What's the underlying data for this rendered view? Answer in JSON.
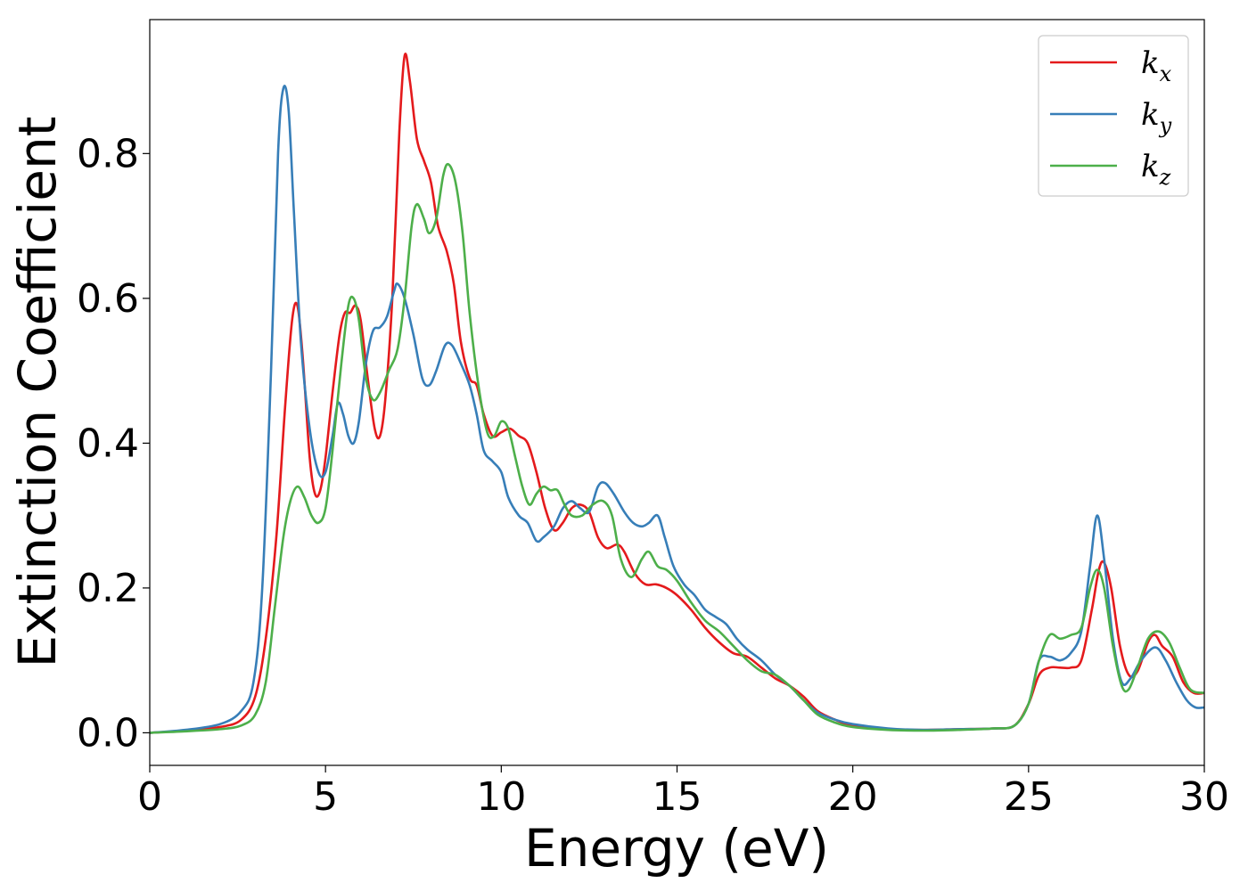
{
  "chart_data": {
    "type": "line",
    "xlabel": "Energy (eV)",
    "ylabel": "Extinction Coefficient",
    "xlim": [
      0,
      30
    ],
    "ylim": [
      -0.045,
      0.985
    ],
    "xticks": [
      0,
      5,
      10,
      15,
      20,
      25,
      30
    ],
    "yticks": [
      0.0,
      0.2,
      0.4,
      0.6,
      0.8
    ],
    "xtick_labels": [
      "0",
      "5",
      "10",
      "15",
      "20",
      "25",
      "30"
    ],
    "ytick_labels": [
      "0.0",
      "0.2",
      "0.4",
      "0.6",
      "0.8"
    ],
    "grid": false,
    "legend_position": "top-right",
    "series": [
      {
        "name": "k_x",
        "label_main": "k",
        "label_sub": "x",
        "color": "#e41a1c",
        "points": [
          [
            0,
            0.0
          ],
          [
            1,
            0.003
          ],
          [
            2,
            0.008
          ],
          [
            2.6,
            0.018
          ],
          [
            3.0,
            0.05
          ],
          [
            3.3,
            0.13
          ],
          [
            3.6,
            0.27
          ],
          [
            3.85,
            0.45
          ],
          [
            4.05,
            0.57
          ],
          [
            4.2,
            0.59
          ],
          [
            4.35,
            0.52
          ],
          [
            4.55,
            0.38
          ],
          [
            4.7,
            0.33
          ],
          [
            4.85,
            0.335
          ],
          [
            5.0,
            0.38
          ],
          [
            5.2,
            0.47
          ],
          [
            5.4,
            0.55
          ],
          [
            5.55,
            0.58
          ],
          [
            5.7,
            0.58
          ],
          [
            5.85,
            0.59
          ],
          [
            6.0,
            0.57
          ],
          [
            6.2,
            0.49
          ],
          [
            6.4,
            0.42
          ],
          [
            6.55,
            0.41
          ],
          [
            6.7,
            0.46
          ],
          [
            6.9,
            0.6
          ],
          [
            7.1,
            0.83
          ],
          [
            7.25,
            0.935
          ],
          [
            7.4,
            0.9
          ],
          [
            7.6,
            0.82
          ],
          [
            7.8,
            0.79
          ],
          [
            8.0,
            0.76
          ],
          [
            8.2,
            0.7
          ],
          [
            8.45,
            0.665
          ],
          [
            8.65,
            0.62
          ],
          [
            8.85,
            0.54
          ],
          [
            9.1,
            0.49
          ],
          [
            9.3,
            0.48
          ],
          [
            9.5,
            0.44
          ],
          [
            9.75,
            0.41
          ],
          [
            10.0,
            0.415
          ],
          [
            10.25,
            0.42
          ],
          [
            10.5,
            0.41
          ],
          [
            10.75,
            0.4
          ],
          [
            11.0,
            0.36
          ],
          [
            11.25,
            0.31
          ],
          [
            11.5,
            0.28
          ],
          [
            11.75,
            0.29
          ],
          [
            12.0,
            0.31
          ],
          [
            12.25,
            0.315
          ],
          [
            12.5,
            0.305
          ],
          [
            12.75,
            0.27
          ],
          [
            13.0,
            0.255
          ],
          [
            13.3,
            0.26
          ],
          [
            13.5,
            0.25
          ],
          [
            13.8,
            0.22
          ],
          [
            14.1,
            0.205
          ],
          [
            14.4,
            0.205
          ],
          [
            14.7,
            0.2
          ],
          [
            15.0,
            0.19
          ],
          [
            15.4,
            0.17
          ],
          [
            15.8,
            0.145
          ],
          [
            16.2,
            0.125
          ],
          [
            16.6,
            0.11
          ],
          [
            17.0,
            0.105
          ],
          [
            17.4,
            0.09
          ],
          [
            17.8,
            0.075
          ],
          [
            18.2,
            0.065
          ],
          [
            18.6,
            0.05
          ],
          [
            19.0,
            0.03
          ],
          [
            19.5,
            0.018
          ],
          [
            20.0,
            0.01
          ],
          [
            21,
            0.005
          ],
          [
            22,
            0.004
          ],
          [
            23,
            0.005
          ],
          [
            24,
            0.006
          ],
          [
            24.6,
            0.01
          ],
          [
            25.0,
            0.04
          ],
          [
            25.3,
            0.08
          ],
          [
            25.6,
            0.09
          ],
          [
            25.9,
            0.09
          ],
          [
            26.2,
            0.09
          ],
          [
            26.5,
            0.1
          ],
          [
            26.8,
            0.17
          ],
          [
            27.0,
            0.225
          ],
          [
            27.15,
            0.235
          ],
          [
            27.35,
            0.2
          ],
          [
            27.6,
            0.12
          ],
          [
            27.85,
            0.08
          ],
          [
            28.1,
            0.085
          ],
          [
            28.4,
            0.125
          ],
          [
            28.6,
            0.135
          ],
          [
            28.8,
            0.12
          ],
          [
            29.1,
            0.105
          ],
          [
            29.4,
            0.07
          ],
          [
            29.7,
            0.055
          ],
          [
            30.0,
            0.055
          ]
        ]
      },
      {
        "name": "k_y",
        "label_main": "k",
        "label_sub": "y",
        "color": "#377eb8",
        "points": [
          [
            0,
            0.0
          ],
          [
            1,
            0.004
          ],
          [
            2,
            0.012
          ],
          [
            2.6,
            0.03
          ],
          [
            2.95,
            0.07
          ],
          [
            3.2,
            0.2
          ],
          [
            3.45,
            0.5
          ],
          [
            3.65,
            0.8
          ],
          [
            3.8,
            0.89
          ],
          [
            3.95,
            0.86
          ],
          [
            4.1,
            0.72
          ],
          [
            4.3,
            0.54
          ],
          [
            4.55,
            0.42
          ],
          [
            4.8,
            0.36
          ],
          [
            5.0,
            0.36
          ],
          [
            5.2,
            0.41
          ],
          [
            5.35,
            0.455
          ],
          [
            5.5,
            0.44
          ],
          [
            5.65,
            0.41
          ],
          [
            5.8,
            0.4
          ],
          [
            5.95,
            0.43
          ],
          [
            6.15,
            0.51
          ],
          [
            6.35,
            0.555
          ],
          [
            6.55,
            0.56
          ],
          [
            6.75,
            0.575
          ],
          [
            6.95,
            0.61
          ],
          [
            7.05,
            0.62
          ],
          [
            7.25,
            0.6
          ],
          [
            7.5,
            0.55
          ],
          [
            7.75,
            0.49
          ],
          [
            7.95,
            0.48
          ],
          [
            8.15,
            0.5
          ],
          [
            8.4,
            0.535
          ],
          [
            8.6,
            0.535
          ],
          [
            8.85,
            0.51
          ],
          [
            9.1,
            0.48
          ],
          [
            9.3,
            0.44
          ],
          [
            9.5,
            0.39
          ],
          [
            9.75,
            0.375
          ],
          [
            10.0,
            0.36
          ],
          [
            10.2,
            0.325
          ],
          [
            10.5,
            0.3
          ],
          [
            10.75,
            0.29
          ],
          [
            11.0,
            0.265
          ],
          [
            11.2,
            0.27
          ],
          [
            11.5,
            0.285
          ],
          [
            11.75,
            0.31
          ],
          [
            12.0,
            0.32
          ],
          [
            12.25,
            0.31
          ],
          [
            12.5,
            0.305
          ],
          [
            12.75,
            0.34
          ],
          [
            12.95,
            0.345
          ],
          [
            13.2,
            0.33
          ],
          [
            13.5,
            0.305
          ],
          [
            13.75,
            0.29
          ],
          [
            14.0,
            0.285
          ],
          [
            14.2,
            0.29
          ],
          [
            14.45,
            0.3
          ],
          [
            14.65,
            0.27
          ],
          [
            14.9,
            0.23
          ],
          [
            15.2,
            0.205
          ],
          [
            15.5,
            0.19
          ],
          [
            15.8,
            0.17
          ],
          [
            16.1,
            0.16
          ],
          [
            16.4,
            0.15
          ],
          [
            16.7,
            0.13
          ],
          [
            17.0,
            0.115
          ],
          [
            17.4,
            0.1
          ],
          [
            17.8,
            0.08
          ],
          [
            18.2,
            0.065
          ],
          [
            18.6,
            0.045
          ],
          [
            19.0,
            0.028
          ],
          [
            19.5,
            0.018
          ],
          [
            20.0,
            0.012
          ],
          [
            21,
            0.006
          ],
          [
            22,
            0.004
          ],
          [
            23,
            0.005
          ],
          [
            24,
            0.006
          ],
          [
            24.6,
            0.01
          ],
          [
            25.0,
            0.04
          ],
          [
            25.3,
            0.1
          ],
          [
            25.6,
            0.105
          ],
          [
            25.9,
            0.1
          ],
          [
            26.2,
            0.11
          ],
          [
            26.5,
            0.14
          ],
          [
            26.75,
            0.23
          ],
          [
            26.95,
            0.3
          ],
          [
            27.15,
            0.24
          ],
          [
            27.4,
            0.13
          ],
          [
            27.65,
            0.07
          ],
          [
            27.9,
            0.075
          ],
          [
            28.2,
            0.1
          ],
          [
            28.6,
            0.118
          ],
          [
            28.9,
            0.1
          ],
          [
            29.2,
            0.07
          ],
          [
            29.5,
            0.045
          ],
          [
            29.75,
            0.035
          ],
          [
            30.0,
            0.035
          ]
        ]
      },
      {
        "name": "k_z",
        "label_main": "k",
        "label_sub": "z",
        "color": "#4daf4a",
        "points": [
          [
            0,
            0.0
          ],
          [
            1,
            0.002
          ],
          [
            2,
            0.005
          ],
          [
            2.6,
            0.01
          ],
          [
            3.0,
            0.025
          ],
          [
            3.3,
            0.07
          ],
          [
            3.55,
            0.17
          ],
          [
            3.8,
            0.27
          ],
          [
            4.0,
            0.32
          ],
          [
            4.2,
            0.34
          ],
          [
            4.4,
            0.325
          ],
          [
            4.6,
            0.3
          ],
          [
            4.8,
            0.29
          ],
          [
            5.0,
            0.31
          ],
          [
            5.2,
            0.39
          ],
          [
            5.45,
            0.51
          ],
          [
            5.65,
            0.59
          ],
          [
            5.8,
            0.6
          ],
          [
            5.95,
            0.57
          ],
          [
            6.15,
            0.49
          ],
          [
            6.35,
            0.46
          ],
          [
            6.55,
            0.47
          ],
          [
            6.8,
            0.5
          ],
          [
            7.05,
            0.53
          ],
          [
            7.25,
            0.6
          ],
          [
            7.45,
            0.7
          ],
          [
            7.6,
            0.73
          ],
          [
            7.8,
            0.71
          ],
          [
            7.95,
            0.69
          ],
          [
            8.15,
            0.71
          ],
          [
            8.35,
            0.77
          ],
          [
            8.5,
            0.785
          ],
          [
            8.7,
            0.76
          ],
          [
            8.9,
            0.69
          ],
          [
            9.1,
            0.58
          ],
          [
            9.35,
            0.48
          ],
          [
            9.6,
            0.415
          ],
          [
            9.8,
            0.41
          ],
          [
            10.0,
            0.43
          ],
          [
            10.2,
            0.42
          ],
          [
            10.4,
            0.38
          ],
          [
            10.6,
            0.34
          ],
          [
            10.8,
            0.315
          ],
          [
            11.0,
            0.33
          ],
          [
            11.2,
            0.34
          ],
          [
            11.4,
            0.335
          ],
          [
            11.6,
            0.335
          ],
          [
            11.8,
            0.315
          ],
          [
            12.0,
            0.3
          ],
          [
            12.3,
            0.3
          ],
          [
            12.6,
            0.315
          ],
          [
            12.9,
            0.32
          ],
          [
            13.15,
            0.3
          ],
          [
            13.4,
            0.24
          ],
          [
            13.7,
            0.215
          ],
          [
            14.0,
            0.24
          ],
          [
            14.2,
            0.25
          ],
          [
            14.45,
            0.23
          ],
          [
            14.7,
            0.225
          ],
          [
            15.0,
            0.21
          ],
          [
            15.4,
            0.18
          ],
          [
            15.8,
            0.155
          ],
          [
            16.2,
            0.14
          ],
          [
            16.6,
            0.12
          ],
          [
            17.0,
            0.1
          ],
          [
            17.4,
            0.085
          ],
          [
            17.8,
            0.08
          ],
          [
            18.2,
            0.065
          ],
          [
            18.6,
            0.045
          ],
          [
            19.0,
            0.025
          ],
          [
            19.5,
            0.014
          ],
          [
            20.0,
            0.008
          ],
          [
            21,
            0.004
          ],
          [
            22,
            0.003
          ],
          [
            23,
            0.004
          ],
          [
            24,
            0.006
          ],
          [
            24.6,
            0.01
          ],
          [
            25.0,
            0.04
          ],
          [
            25.3,
            0.1
          ],
          [
            25.6,
            0.135
          ],
          [
            25.9,
            0.13
          ],
          [
            26.2,
            0.135
          ],
          [
            26.5,
            0.145
          ],
          [
            26.75,
            0.2
          ],
          [
            26.95,
            0.225
          ],
          [
            27.15,
            0.2
          ],
          [
            27.4,
            0.12
          ],
          [
            27.65,
            0.065
          ],
          [
            27.85,
            0.06
          ],
          [
            28.1,
            0.09
          ],
          [
            28.4,
            0.13
          ],
          [
            28.7,
            0.14
          ],
          [
            29.0,
            0.125
          ],
          [
            29.3,
            0.09
          ],
          [
            29.6,
            0.06
          ],
          [
            30.0,
            0.055
          ]
        ]
      }
    ]
  }
}
